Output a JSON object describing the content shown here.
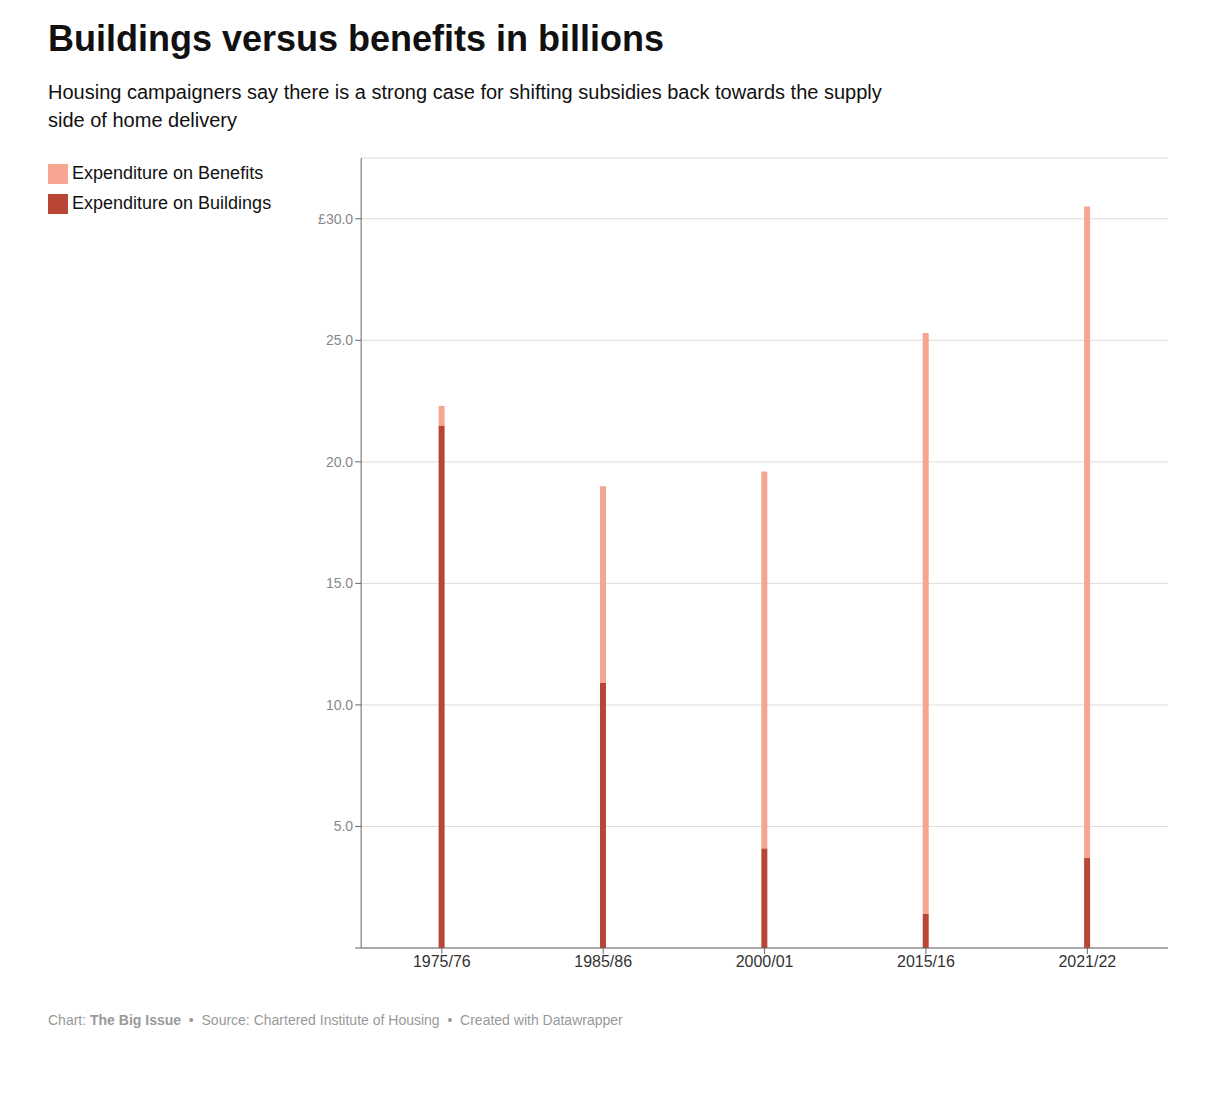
{
  "chart_data": {
    "type": "bar",
    "stacked": true,
    "title": "Buildings versus benefits in billions",
    "subtitle": [
      "Housing campaigners say there is a strong case for shifting subsidies back towards the supply",
      "side of home delivery"
    ],
    "footer": [
      "Chart: ",
      "The Big Issue",
      "  •  Source: Chartered Institute of Housing  •  Created with Datawrapper"
    ],
    "categories": [
      "1975/76",
      "1985/86",
      "2000/01",
      "2015/16",
      "2021/22"
    ],
    "series": [
      {
        "name": "Expenditure on Buildings",
        "color": "#b84535",
        "values": [
          21.5,
          10.9,
          4.1,
          1.4,
          3.7
        ]
      },
      {
        "name": "Expenditure on Benefits",
        "color": "#f5a590",
        "values": [
          0.8,
          8.1,
          15.5,
          23.9,
          26.8
        ]
      }
    ],
    "ylim": [
      0,
      32.5
    ],
    "yticks": [
      {
        "value": 0,
        "label": null
      },
      {
        "value": 5.0,
        "label": "5.0"
      },
      {
        "value": 10.0,
        "label": "10.0"
      },
      {
        "value": 15.0,
        "label": "15.0"
      },
      {
        "value": 20.0,
        "label": "20.0"
      },
      {
        "value": 25.0,
        "label": "25.0"
      },
      {
        "value": 30.0,
        "label": "£30.0"
      }
    ],
    "grid": true,
    "legend": "upper left"
  }
}
